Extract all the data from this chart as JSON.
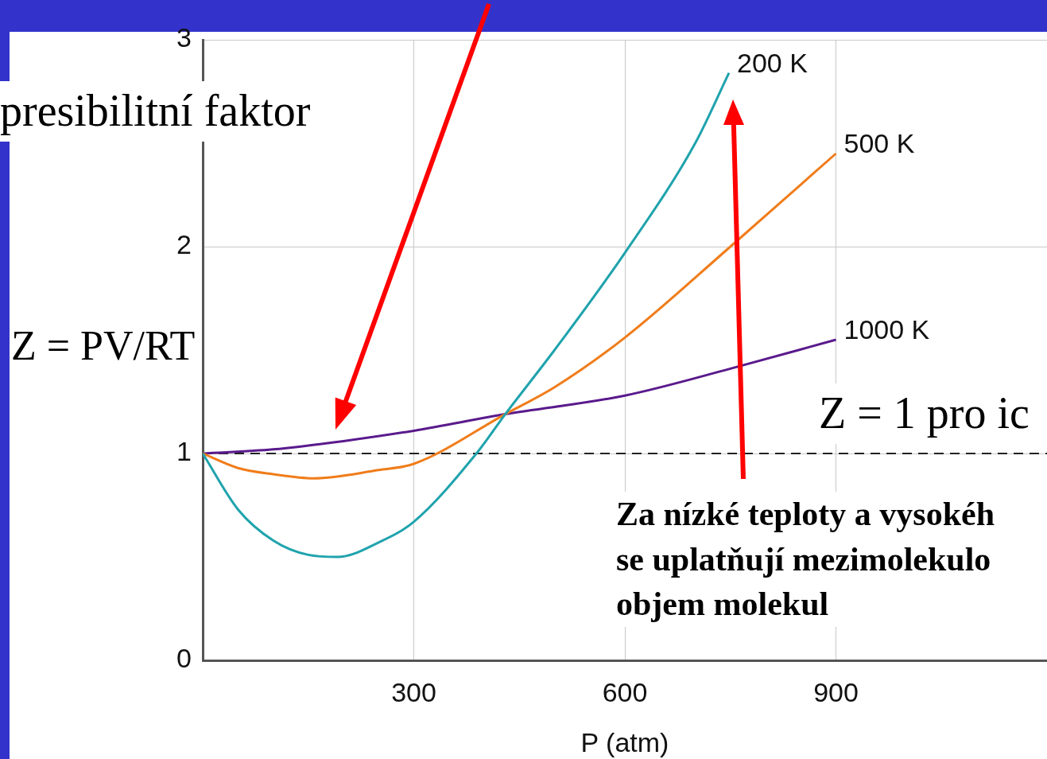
{
  "chart_data": {
    "type": "line",
    "xlabel": "P (atm)",
    "ylabel": "Z = PV/RT",
    "xlim": [
      0,
      1200
    ],
    "ylim": [
      0,
      3
    ],
    "xticks": [
      300,
      600,
      900
    ],
    "yticks": [
      0,
      1,
      2,
      3
    ],
    "grid": true,
    "legend": false,
    "marker": "none",
    "series": [
      {
        "name": "200 K",
        "color": "#1fa3ad",
        "x": [
          0,
          50,
          100,
          150,
          192,
          250,
          300,
          389,
          430,
          500,
          600,
          700,
          748
        ],
        "values": [
          1,
          0.73,
          0.58,
          0.51,
          0.5,
          0.57,
          0.67,
          1,
          1.19,
          1.5,
          1.97,
          2.5,
          2.84
        ]
      },
      {
        "name": "500 K",
        "color": "#f07c1a",
        "x": [
          0,
          50,
          100,
          158,
          250,
          300,
          430,
          500,
          600,
          750,
          900
        ],
        "values": [
          1,
          0.93,
          0.9,
          0.88,
          0.92,
          0.95,
          1.19,
          1.32,
          1.56,
          2.0,
          2.45
        ]
      },
      {
        "name": "1000 K",
        "color": "#5a1a8c",
        "x": [
          0,
          100,
          200,
          300,
          430,
          600,
          750,
          900
        ],
        "values": [
          1,
          1.02,
          1.06,
          1.11,
          1.19,
          1.28,
          1.41,
          1.55
        ]
      }
    ],
    "ref_lines": [
      {
        "axis": "y",
        "value": 1,
        "color": "#222222",
        "line_style": "dashed"
      }
    ],
    "annotations": [
      "presibilitní faktor",
      "Z = 1 pro ic",
      "Za nízké teploty a vysokéh\nse uplatňují mezimolekulo\nobjem molekul"
    ]
  }
}
